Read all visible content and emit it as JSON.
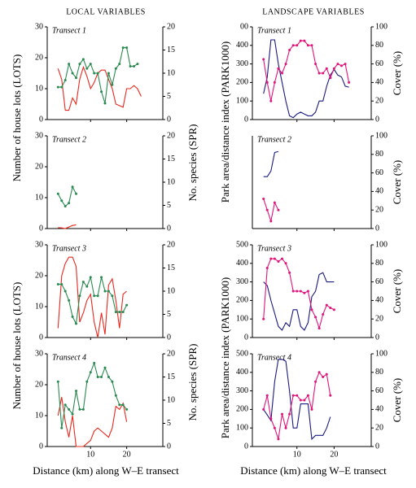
{
  "figure": {
    "left_title": "LOCAL VARIABLES",
    "right_title": "LANDSCAPE VARIABLES",
    "left_xlabel": "Distance (km) along W–E transect",
    "right_xlabel": "Distance (km) along W–E transect",
    "lots_labels": [
      "Number of house lots (LOTS)",
      "Number of house lots (LOTS)"
    ],
    "spr_labels": [
      "No. species (SPR)",
      "No. species (SPR)"
    ],
    "park_labels": [
      "Park area/distance index (PARK1000)",
      "Park area/distance index (PARK1000)"
    ]
  },
  "chart_data": [
    {
      "type": "line",
      "subtitle": "Transect 1",
      "xlim": [
        -2,
        30
      ],
      "xticks": [
        10,
        20
      ],
      "ylim": [
        0,
        30
      ],
      "yticks": [
        0,
        10,
        20,
        30
      ],
      "y2lim": [
        0,
        20
      ],
      "y2ticks": [
        0,
        5,
        10,
        15,
        20
      ],
      "x": [
        1,
        2,
        3,
        4,
        5,
        6,
        7,
        8,
        9,
        10,
        11,
        12,
        13,
        14,
        15,
        16,
        17,
        18,
        19,
        20,
        21,
        22,
        23,
        24
      ],
      "series": [
        {
          "color": "#e8281e",
          "values": [
            16.5,
            13,
            3,
            3,
            7,
            5,
            13,
            17,
            14,
            10,
            12,
            15,
            16,
            16,
            13,
            10,
            5,
            4.5,
            4,
            10,
            10,
            11,
            10,
            7.5
          ]
        },
        {
          "color": "#2a8a50",
          "axis": "y2",
          "markers": true,
          "values": [
            7,
            7,
            8.5,
            12,
            10,
            9,
            12,
            13,
            11,
            12,
            10,
            10,
            6,
            3.5,
            10,
            7.5,
            11,
            12,
            15.5,
            15.5,
            11.5,
            11.5,
            12,
            null
          ]
        }
      ]
    },
    {
      "type": "line",
      "subtitle": "Transect 2",
      "xlim": [
        -2,
        30
      ],
      "xticks": [
        10,
        20
      ],
      "ylim": [
        0,
        30
      ],
      "yticks": [
        0,
        10,
        20,
        30
      ],
      "y2lim": [
        0,
        20
      ],
      "y2ticks": [
        0,
        5,
        10,
        15,
        20
      ],
      "x": [
        1,
        2,
        3,
        4,
        5,
        6
      ],
      "series": [
        {
          "color": "#e8281e",
          "values": [
            0.3,
            0.2,
            0,
            0.5,
            1,
            1.2
          ]
        },
        {
          "color": "#2a8a50",
          "axis": "y2",
          "markers": true,
          "values": [
            7.5,
            6,
            4.8,
            5.5,
            9,
            7.5
          ]
        }
      ]
    },
    {
      "type": "line",
      "subtitle": "Transect 3",
      "xlim": [
        -2,
        30
      ],
      "xticks": [
        10,
        20
      ],
      "ylim": [
        0,
        30
      ],
      "yticks": [
        0,
        10,
        20,
        30
      ],
      "y2lim": [
        0,
        20
      ],
      "y2ticks": [
        0,
        5,
        10,
        15,
        20
      ],
      "x": [
        1,
        2,
        3,
        4,
        5,
        6,
        7,
        8,
        9,
        10,
        11,
        12,
        13,
        14,
        15,
        16,
        17,
        18,
        19,
        20
      ],
      "series": [
        {
          "color": "#e8281e",
          "values": [
            3,
            20,
            24,
            26,
            26,
            23,
            5,
            8,
            12,
            14,
            5,
            0,
            8,
            1,
            17,
            19,
            12,
            3,
            14,
            15
          ]
        },
        {
          "color": "#2a8a50",
          "axis": "y2",
          "markers": true,
          "values": [
            11.5,
            11.5,
            10,
            8,
            4.5,
            3,
            9,
            12,
            11,
            13,
            9,
            9,
            13,
            10,
            10,
            9,
            5.5,
            5.5,
            5.5,
            7
          ]
        }
      ]
    },
    {
      "type": "line",
      "subtitle": "Transect 4",
      "xlim": [
        -2,
        30
      ],
      "xticks": [
        10,
        20
      ],
      "ylim": [
        0,
        30
      ],
      "yticks": [
        0,
        10,
        20,
        30
      ],
      "y2lim": [
        0,
        20
      ],
      "y2ticks": [
        0,
        5,
        10,
        15,
        20
      ],
      "x": [
        1,
        2,
        3,
        4,
        5,
        6,
        7,
        8,
        9,
        10,
        11,
        12,
        13,
        14,
        15,
        16,
        17,
        18,
        19,
        20
      ],
      "series": [
        {
          "color": "#e8281e",
          "values": [
            10,
            16,
            8,
            3,
            10,
            0,
            0,
            0,
            1,
            2,
            5,
            6,
            5,
            4,
            3,
            6,
            13,
            12,
            14,
            8
          ]
        },
        {
          "color": "#2a8a50",
          "axis": "y2",
          "markers": true,
          "values": [
            14,
            4,
            9,
            8,
            7,
            12,
            8,
            8,
            14,
            16,
            18,
            15,
            15,
            17,
            15,
            14,
            11,
            9,
            9,
            8
          ]
        }
      ]
    },
    {
      "type": "line",
      "subtitle": "Transect 1",
      "xlim": [
        -2,
        30
      ],
      "xticks": [
        10,
        20
      ],
      "ylim": [
        0,
        500
      ],
      "yticks": [
        0,
        100,
        200,
        300,
        400,
        {
          "value": 500,
          "label": "00"
        }
      ],
      "y2lim": [
        0,
        100
      ],
      "y2ticks": [
        0,
        20,
        40,
        60,
        80,
        100
      ],
      "y2label": "Cover (%)",
      "x": [
        1,
        2,
        3,
        4,
        5,
        6,
        7,
        8,
        9,
        10,
        11,
        12,
        13,
        14,
        15,
        16,
        17,
        18,
        19,
        20,
        21,
        22,
        23,
        24
      ],
      "series": [
        {
          "color": "#1a1a80",
          "values": [
            140,
            230,
            430,
            430,
            300,
            200,
            100,
            20,
            10,
            30,
            40,
            30,
            20,
            20,
            40,
            100,
            100,
            180,
            240,
            270,
            240,
            230,
            180,
            175
          ]
        },
        {
          "color": "#e0147a",
          "axis": "y2",
          "markers": true,
          "values": [
            65,
            40,
            20,
            40,
            55,
            50,
            60,
            75,
            80,
            80,
            85,
            85,
            80,
            80,
            60,
            50,
            50,
            55,
            45,
            55,
            60,
            58,
            60,
            40
          ]
        }
      ]
    },
    {
      "type": "line",
      "subtitle": "Transect 2",
      "xlim": [
        -2,
        30
      ],
      "xticks": [
        10,
        20
      ],
      "ylim": [
        0,
        500
      ],
      "y2lim": [
        0,
        100
      ],
      "y2ticks": [
        0,
        20,
        40,
        60,
        80,
        100
      ],
      "y2label": "Cover (%)",
      "x": [
        1,
        2,
        3,
        4,
        5
      ],
      "series": [
        {
          "color": "#1a1a80",
          "values": [
            280,
            280,
            310,
            410,
            415
          ]
        },
        {
          "color": "#e0147a",
          "axis": "y2",
          "markers": true,
          "values": [
            32,
            20,
            8,
            28,
            20
          ]
        }
      ]
    },
    {
      "type": "line",
      "subtitle": "Transect 3",
      "xlim": [
        -2,
        30
      ],
      "xticks": [
        10,
        20
      ],
      "ylim": [
        0,
        500
      ],
      "yticks": [
        0,
        100,
        200,
        300,
        400,
        500
      ],
      "y2lim": [
        0,
        100
      ],
      "y2ticks": [
        0,
        20,
        40,
        60,
        80,
        100
      ],
      "y2label": "Cover (%)",
      "x": [
        1,
        2,
        3,
        4,
        5,
        6,
        7,
        8,
        9,
        10,
        11,
        12,
        13,
        14,
        15,
        16,
        17,
        18,
        19,
        20
      ],
      "series": [
        {
          "color": "#1a1a80",
          "values": [
            300,
            280,
            200,
            130,
            60,
            40,
            80,
            60,
            150,
            150,
            60,
            40,
            80,
            220,
            250,
            340,
            350,
            300,
            300,
            300
          ]
        },
        {
          "color": "#e0147a",
          "axis": "y2",
          "markers": true,
          "values": [
            20,
            75,
            85,
            85,
            82,
            85,
            80,
            70,
            50,
            50,
            50,
            48,
            50,
            30,
            22,
            10,
            25,
            35,
            32,
            30
          ]
        }
      ]
    },
    {
      "type": "line",
      "subtitle": "Transect 4",
      "xlim": [
        -2,
        30
      ],
      "xticks": [
        10,
        20
      ],
      "ylim": [
        0,
        500
      ],
      "yticks": [
        0,
        100,
        200,
        300,
        400,
        500
      ],
      "y2lim": [
        0,
        100
      ],
      "y2ticks": [
        0,
        20,
        40,
        60,
        80,
        100
      ],
      "y2label": "Cover (%)",
      "x": [
        1,
        2,
        3,
        4,
        5,
        6,
        7,
        8,
        9,
        10,
        11,
        12,
        13,
        14,
        15,
        16,
        17,
        18,
        19
      ],
      "series": [
        {
          "color": "#1a1a80",
          "values": [
            200,
            170,
            140,
            350,
            470,
            470,
            460,
            300,
            100,
            100,
            230,
            230,
            230,
            40,
            60,
            60,
            60,
            100,
            160
          ]
        },
        {
          "color": "#e0147a",
          "axis": "y2",
          "markers": true,
          "values": [
            40,
            55,
            30,
            20,
            8,
            35,
            20,
            35,
            55,
            55,
            50,
            50,
            55,
            40,
            70,
            80,
            75,
            78,
            55
          ]
        }
      ]
    }
  ]
}
